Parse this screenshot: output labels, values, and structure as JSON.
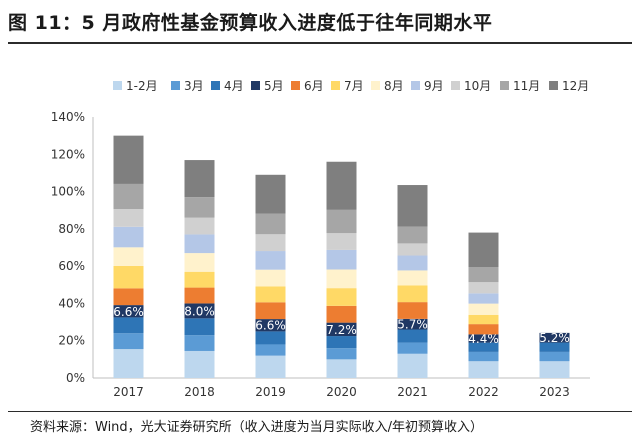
{
  "title": "图 11：5 月政府性基金预算收入进度低于往年同期水平",
  "source": "资料来源：Wind，光大证券研究所（收入进度为当月实际收入/年初预算收入）",
  "chart_data": {
    "type": "bar",
    "stacked": true,
    "categories": [
      "2017",
      "2018",
      "2019",
      "2020",
      "2021",
      "2022",
      "2023"
    ],
    "ylim": [
      0,
      140
    ],
    "yticks": [
      0,
      20,
      40,
      60,
      80,
      100,
      120,
      140
    ],
    "ytick_labels": [
      "0%",
      "20%",
      "40%",
      "60%",
      "80%",
      "100%",
      "120%",
      "140%"
    ],
    "legend_position": "top",
    "grid": false,
    "series": [
      {
        "name": "1-2月",
        "color": "#bdd7ee",
        "values": [
          15.5,
          14.5,
          12.0,
          10.0,
          13.0,
          9.0,
          9.0
        ]
      },
      {
        "name": "3月",
        "color": "#5b9bd5",
        "values": [
          8.5,
          8.5,
          6.0,
          6.0,
          6.0,
          5.0,
          5.0
        ]
      },
      {
        "name": "4月",
        "color": "#2e75b6",
        "values": [
          8.5,
          9.0,
          7.0,
          6.5,
          7.0,
          5.0,
          5.0
        ]
      },
      {
        "name": "5月",
        "color": "#203864",
        "values": [
          6.6,
          8.0,
          6.6,
          7.2,
          5.7,
          4.4,
          5.2
        ]
      },
      {
        "name": "6月",
        "color": "#ed7d31",
        "values": [
          9.0,
          8.5,
          9.0,
          9.0,
          9.0,
          5.5,
          0
        ]
      },
      {
        "name": "7月",
        "color": "#ffd966",
        "values": [
          12.0,
          8.5,
          8.5,
          9.5,
          9.0,
          5.0,
          0
        ]
      },
      {
        "name": "8月",
        "color": "#fff2cc",
        "values": [
          10.0,
          10.0,
          9.0,
          10.0,
          8.0,
          6.0,
          0
        ]
      },
      {
        "name": "9月",
        "color": "#b4c7e7",
        "values": [
          11.0,
          10.0,
          10.0,
          10.5,
          8.0,
          5.5,
          0
        ]
      },
      {
        "name": "10月",
        "color": "#d0d0d0",
        "values": [
          9.5,
          9.0,
          9.0,
          9.0,
          6.5,
          6.0,
          0
        ]
      },
      {
        "name": "11月",
        "color": "#a6a6a6",
        "values": [
          13.5,
          11.0,
          11.0,
          12.5,
          9.0,
          8.0,
          0
        ]
      },
      {
        "name": "12月",
        "color": "#7f7f7f",
        "values": [
          25.9,
          19.9,
          20.9,
          25.8,
          22.3,
          18.6,
          0
        ]
      }
    ],
    "data_labels": {
      "series": "5月",
      "labels": [
        "6.6%",
        "8.0%",
        "6.6%",
        "7.2%",
        "5.7%",
        "4.4%",
        "5.2%"
      ]
    }
  }
}
